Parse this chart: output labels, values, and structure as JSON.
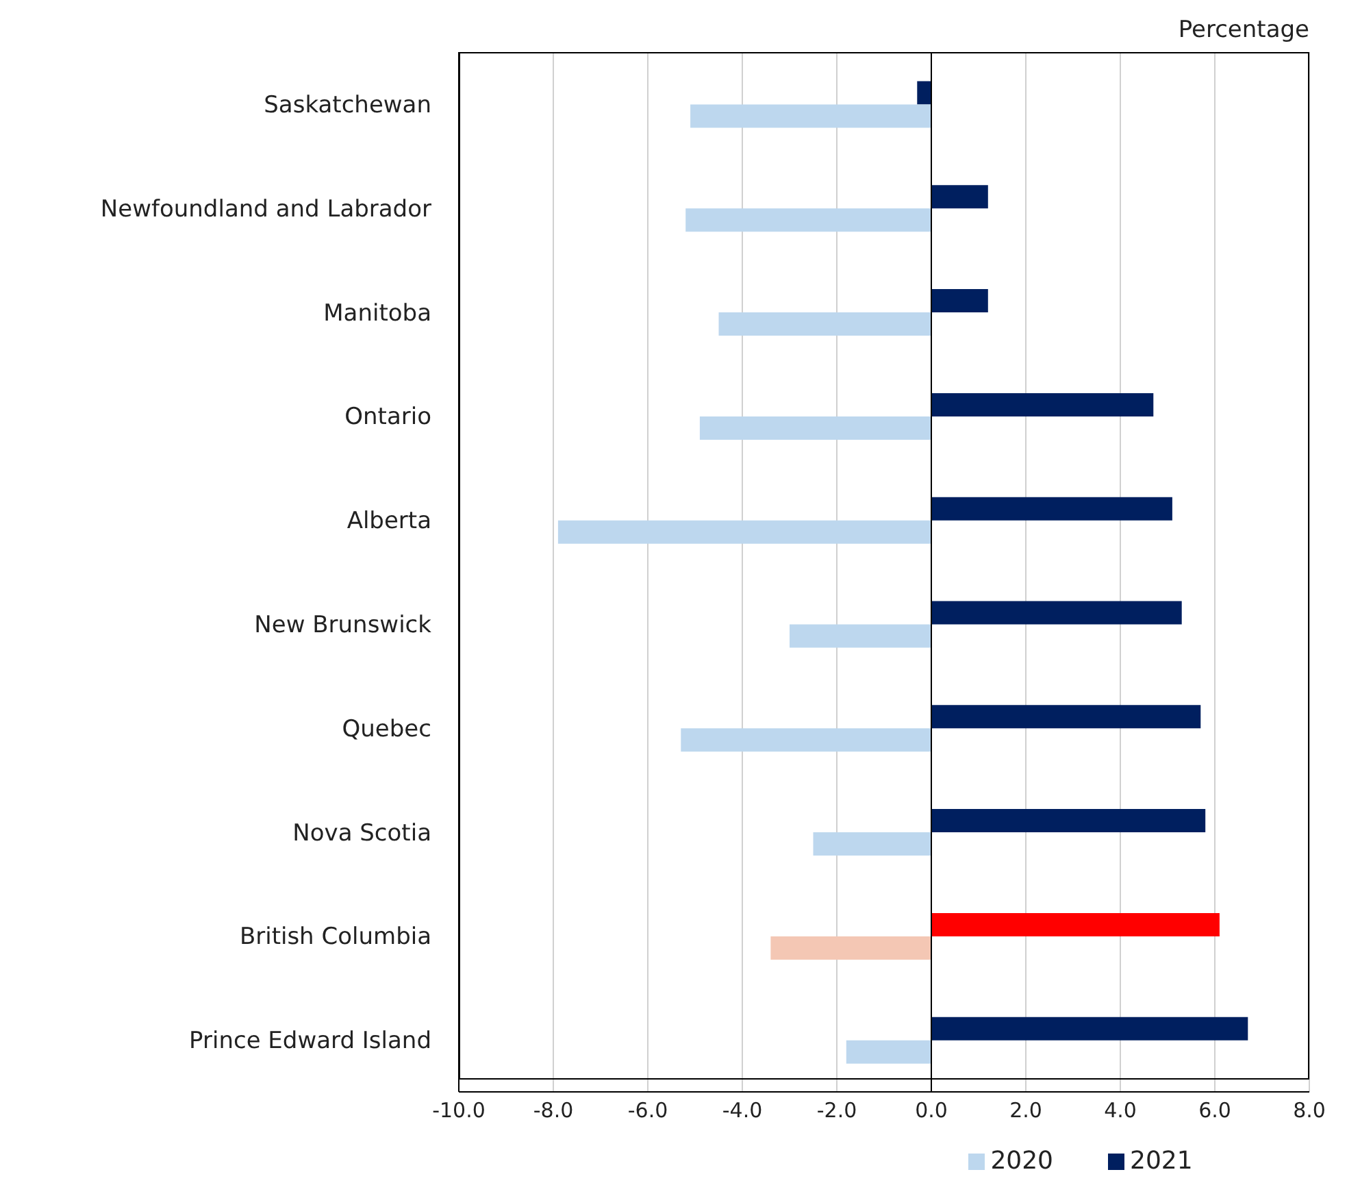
{
  "chart_data": {
    "type": "bar",
    "orientation": "horizontal",
    "xlabel": "Percentage",
    "categories": [
      "Saskatchewan",
      "Newfoundland and Labrador",
      "Manitoba",
      "Ontario",
      "Alberta",
      "New Brunswick",
      "Quebec",
      "Nova Scotia",
      "British Columbia",
      "Prince Edward Island"
    ],
    "series": [
      {
        "name": "2021",
        "color": "#001f5f",
        "colors": [
          "#001f5f",
          "#001f5f",
          "#001f5f",
          "#001f5f",
          "#001f5f",
          "#001f5f",
          "#001f5f",
          "#001f5f",
          "#ff0000",
          "#001f5f"
        ],
        "values": [
          -0.3,
          1.2,
          1.2,
          4.7,
          5.1,
          5.3,
          5.7,
          5.8,
          6.1,
          6.7
        ]
      },
      {
        "name": "2020",
        "color": "#bdd7ee",
        "colors": [
          "#bdd7ee",
          "#bdd7ee",
          "#bdd7ee",
          "#bdd7ee",
          "#bdd7ee",
          "#bdd7ee",
          "#bdd7ee",
          "#bdd7ee",
          "#f4c7b4",
          "#bdd7ee"
        ],
        "values": [
          -5.1,
          -5.2,
          -4.5,
          -4.9,
          -7.9,
          -3.0,
          -5.3,
          -2.5,
          -3.4,
          -1.8
        ]
      }
    ],
    "xlim": [
      -10,
      8
    ],
    "xticks": [
      {
        "value": -10,
        "label": "-10.0"
      },
      {
        "value": -8,
        "label": "-8.0"
      },
      {
        "value": -6,
        "label": "-6.0"
      },
      {
        "value": -4,
        "label": "-4.0"
      },
      {
        "value": -2,
        "label": "-2.0"
      },
      {
        "value": 0,
        "label": "0.0"
      },
      {
        "value": 2,
        "label": "2.0"
      },
      {
        "value": 4,
        "label": "4.0"
      },
      {
        "value": 6,
        "label": "6.0"
      },
      {
        "value": 8,
        "label": "8.0"
      }
    ],
    "grid": "x",
    "legend": "bottom"
  }
}
